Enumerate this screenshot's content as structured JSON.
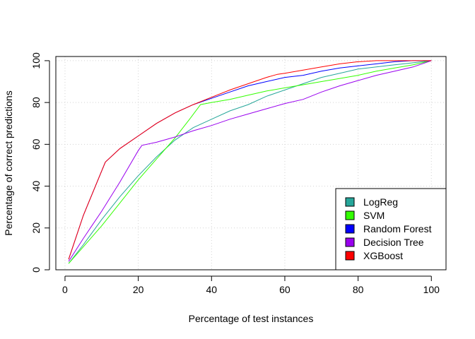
{
  "chart_data": {
    "type": "line",
    "title": "",
    "xlabel": "Percentage of test instances",
    "ylabel": "Percentage of correct predictions",
    "xlim": [
      -2.5,
      104
    ],
    "ylim": [
      0,
      102
    ],
    "xticks": [
      0,
      20,
      40,
      60,
      80,
      100
    ],
    "yticks": [
      0,
      20,
      40,
      60,
      80,
      100
    ],
    "grid": true,
    "legend_position": "bottom-right",
    "baseline": {
      "y": 0,
      "style": "dashed",
      "color": "#000000"
    },
    "series": [
      {
        "name": "LogReg",
        "color": "#26a69a",
        "x": [
          1,
          5,
          10,
          15,
          20,
          25,
          30,
          35,
          40,
          45,
          50,
          55,
          60,
          65,
          70,
          75,
          80,
          85,
          90,
          95,
          100
        ],
        "y": [
          3,
          12,
          24,
          35,
          45,
          54,
          62,
          68,
          72,
          76,
          79,
          83,
          86,
          89,
          92,
          94,
          96,
          97,
          98,
          99,
          100
        ]
      },
      {
        "name": "SVM",
        "color": "#33ff00",
        "x": [
          1,
          5,
          10,
          15,
          20,
          25,
          30,
          34,
          37,
          40,
          45,
          50,
          55,
          60,
          65,
          70,
          75,
          80,
          85,
          90,
          95,
          100
        ],
        "y": [
          3,
          11,
          21,
          32,
          43,
          53,
          63,
          72,
          79,
          80,
          81.5,
          83.5,
          85.5,
          87,
          88.5,
          90,
          91.5,
          93,
          95,
          96.5,
          98,
          100
        ]
      },
      {
        "name": "Random Forest",
        "color": "#0000ff",
        "x": [
          1,
          5,
          11,
          15,
          20,
          25,
          30,
          35,
          40,
          45,
          50,
          55,
          60,
          65,
          70,
          75,
          80,
          85,
          90,
          95,
          100
        ],
        "y": [
          5,
          26,
          51.5,
          58,
          64,
          70,
          75,
          79,
          82,
          85,
          88,
          90,
          92,
          93,
          95,
          96.5,
          97.5,
          98.5,
          99.5,
          100,
          100
        ]
      },
      {
        "name": "Decision Tree",
        "color": "#9900ee",
        "x": [
          1,
          5,
          10,
          15,
          20,
          21,
          25,
          30,
          35,
          40,
          45,
          50,
          55,
          60,
          65,
          70,
          75,
          80,
          85,
          90,
          95,
          100
        ],
        "y": [
          4,
          15,
          28,
          42,
          57,
          59.5,
          61,
          63.5,
          66.5,
          69,
          72,
          74.5,
          77,
          79.5,
          81.5,
          85,
          88,
          90.5,
          93,
          95,
          97,
          100
        ]
      },
      {
        "name": "XGBoost",
        "color": "#ff0000",
        "x": [
          1,
          5,
          11,
          15,
          20,
          25,
          30,
          35,
          40,
          45,
          50,
          55,
          58,
          60,
          65,
          70,
          75,
          80,
          85,
          90,
          95,
          100
        ],
        "y": [
          5,
          26,
          51.5,
          58,
          64,
          70,
          75,
          79,
          82.5,
          86,
          89,
          92,
          93.5,
          94,
          95.5,
          97,
          98.5,
          99.5,
          100,
          100,
          100,
          100
        ]
      }
    ]
  }
}
